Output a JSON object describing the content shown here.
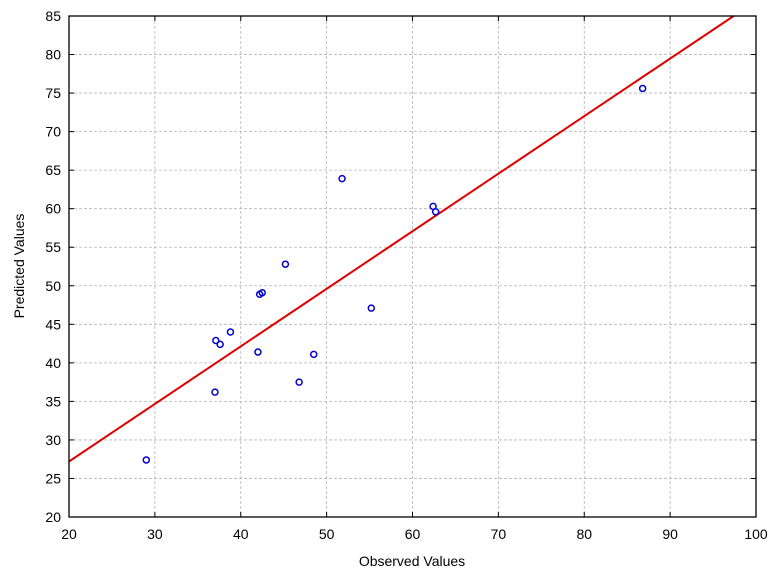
{
  "chart_data": {
    "type": "scatter",
    "xlabel": "Observed Values",
    "ylabel": "Predicted Values",
    "xlim": [
      20,
      100
    ],
    "ylim": [
      20,
      85
    ],
    "x_ticks": [
      20,
      30,
      40,
      50,
      60,
      70,
      80,
      90,
      100
    ],
    "y_ticks": [
      20,
      25,
      30,
      35,
      40,
      45,
      50,
      55,
      60,
      65,
      70,
      75,
      80,
      85
    ],
    "grid": true,
    "points": [
      {
        "x": 29.0,
        "y": 27.4
      },
      {
        "x": 37.0,
        "y": 36.2
      },
      {
        "x": 37.1,
        "y": 42.9
      },
      {
        "x": 37.6,
        "y": 42.4
      },
      {
        "x": 38.8,
        "y": 44.0
      },
      {
        "x": 42.0,
        "y": 41.4
      },
      {
        "x": 42.2,
        "y": 48.9
      },
      {
        "x": 42.5,
        "y": 49.1
      },
      {
        "x": 45.2,
        "y": 52.8
      },
      {
        "x": 46.8,
        "y": 37.5
      },
      {
        "x": 48.5,
        "y": 41.1
      },
      {
        "x": 51.8,
        "y": 63.9
      },
      {
        "x": 55.2,
        "y": 47.1
      },
      {
        "x": 62.4,
        "y": 60.3
      },
      {
        "x": 62.7,
        "y": 59.6
      },
      {
        "x": 86.8,
        "y": 75.6
      }
    ],
    "fit_line": {
      "x": [
        20,
        97.4
      ],
      "y": [
        27.2,
        85
      ]
    },
    "colors": {
      "points": "#0000cc",
      "fit_line": "#e00000",
      "grid": "#b4b4b4"
    }
  }
}
